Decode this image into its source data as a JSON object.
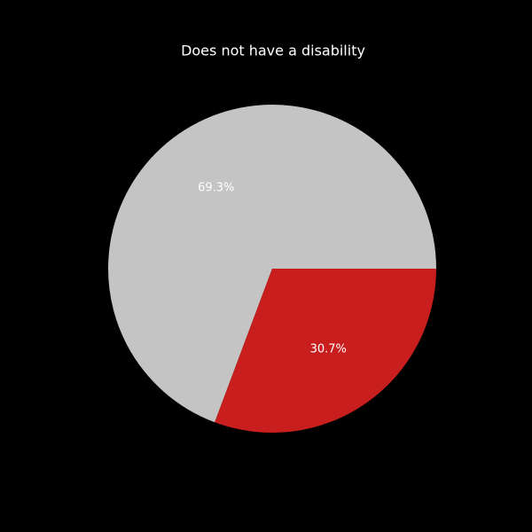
{
  "chart_data": {
    "type": "pie",
    "title": "Does not have a disability",
    "values": [
      69.3,
      30.7
    ],
    "value_labels": [
      "69.3%",
      "30.7%"
    ],
    "colors": [
      "#c4c4c4",
      "#c81e1e"
    ],
    "start_angle": 0,
    "direction": "counterclockwise"
  }
}
